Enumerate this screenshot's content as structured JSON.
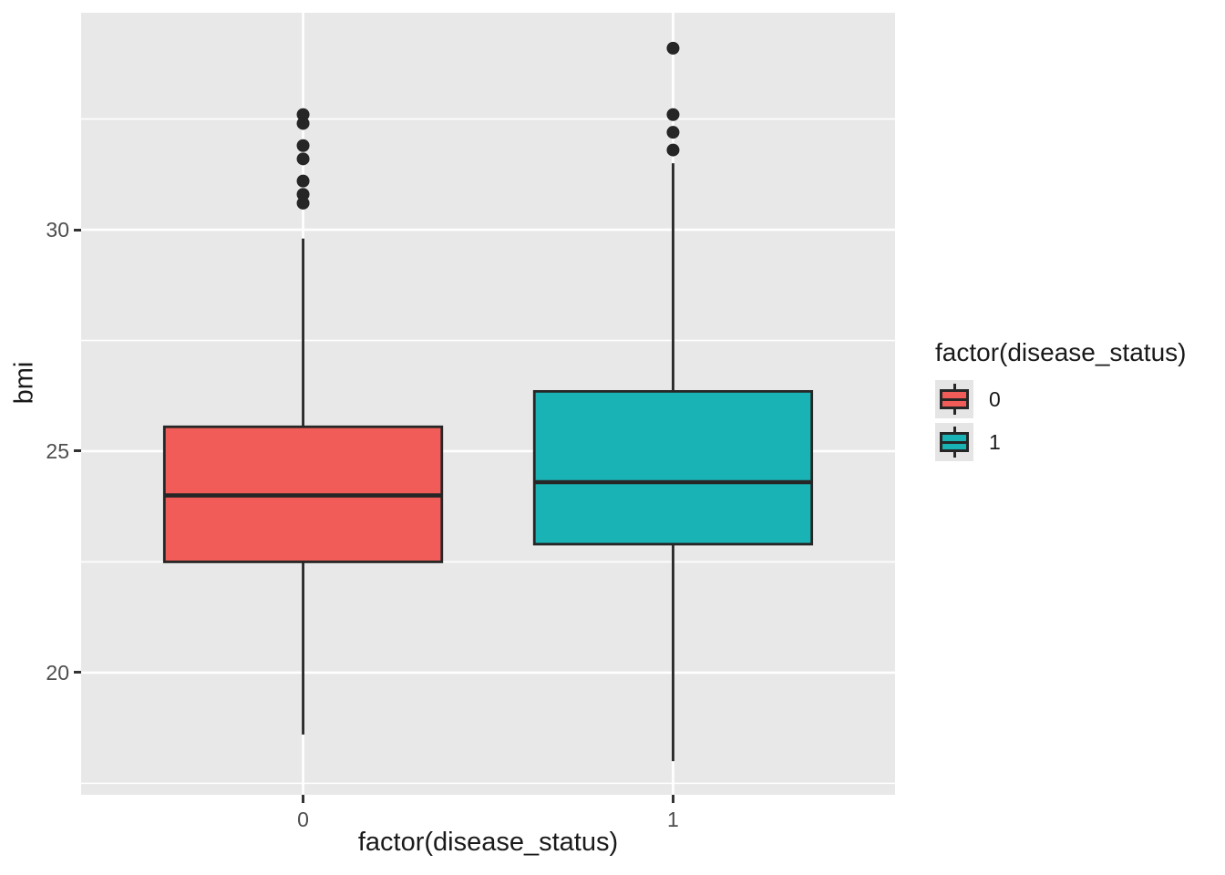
{
  "chart_data": {
    "type": "boxplot",
    "title": "",
    "xlabel": "factor(disease_status)",
    "ylabel": "bmi",
    "ylim": [
      17.24,
      34.9
    ],
    "yticks_major": [
      20,
      25,
      30
    ],
    "yticks_minor": [
      17.5,
      22.5,
      27.5,
      32.5
    ],
    "categories": [
      "0",
      "1"
    ],
    "grid": true,
    "legend_position": "right",
    "series": [
      {
        "category": "0",
        "color": "#F25C58",
        "lower_whisker": 18.6,
        "q1": 22.5,
        "median": 24.0,
        "q3": 25.55,
        "upper_whisker": 29.8,
        "outliers": [
          30.6,
          30.8,
          31.1,
          31.6,
          31.9,
          32.4,
          32.6
        ]
      },
      {
        "category": "1",
        "color": "#1AB3B5",
        "lower_whisker": 18.0,
        "q1": 22.9,
        "median": 24.3,
        "q3": 26.35,
        "upper_whisker": 31.5,
        "outliers": [
          31.8,
          32.2,
          32.6,
          34.1
        ]
      }
    ],
    "legend": {
      "title": "factor(disease_status)",
      "entries": [
        {
          "label": "0",
          "color": "#F25C58"
        },
        {
          "label": "1",
          "color": "#1AB3B5"
        }
      ]
    },
    "colors": {
      "panel_bg": "#E8E8E8",
      "grid": "#FFFFFF",
      "stroke": "#262626",
      "tick_mark": "#333333",
      "tick_label": "#4D4D4D",
      "title": "#1A1A1A",
      "legend_key_bg": "#E5E5E5"
    }
  }
}
